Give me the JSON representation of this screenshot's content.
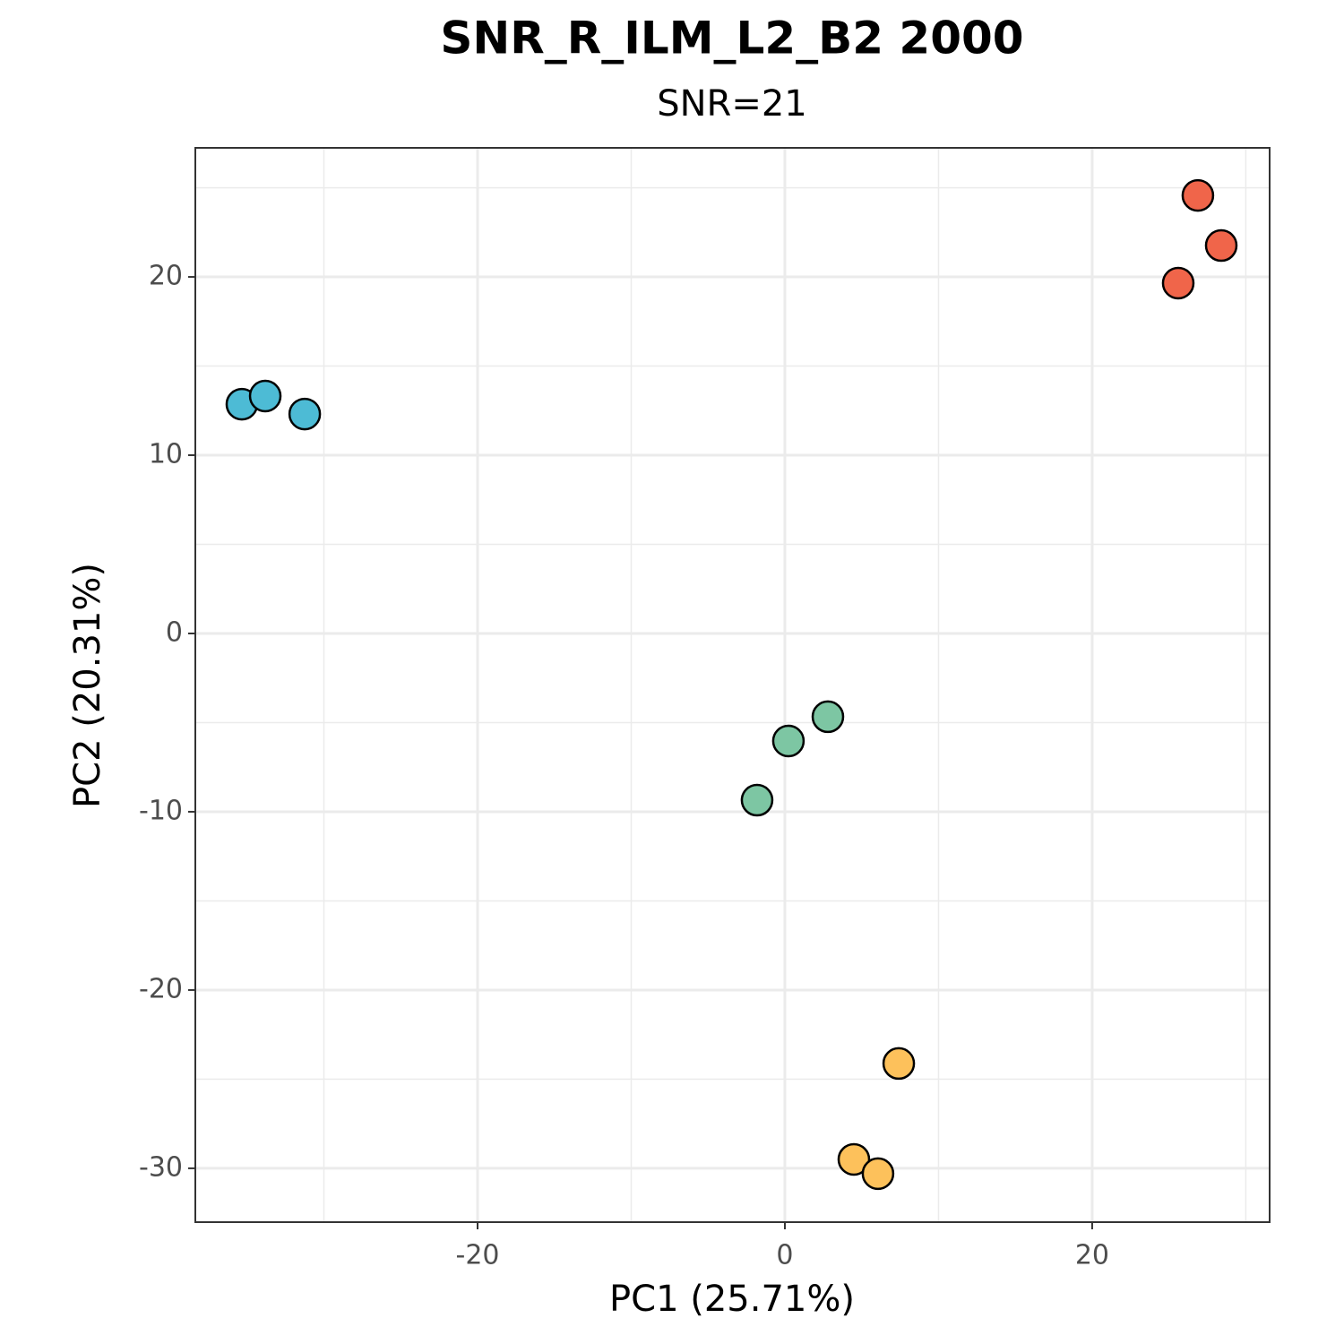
{
  "chart_data": {
    "type": "scatter",
    "title": "SNR_R_ILM_L2_B2 2000",
    "subtitle": "SNR=21",
    "x_label": "PC1 (25.71%)",
    "y_label": "PC2 (20.31%)",
    "xlim": [
      -38.37,
      31.55
    ],
    "ylim": [
      -33.02,
      27.24
    ],
    "xticks": [
      -20,
      0,
      20
    ],
    "yticks": [
      -30,
      -20,
      -10,
      0,
      10,
      20
    ],
    "grid": true,
    "series": [
      {
        "color": "#4dbbd5",
        "x": [
          -35.34,
          -33.82,
          -31.25
        ],
        "values": [
          12.86,
          13.32,
          12.31
        ]
      },
      {
        "color": "#f0654a",
        "x": [
          26.88,
          28.4,
          25.6
        ],
        "values": [
          24.57,
          21.76,
          19.65
        ]
      },
      {
        "color": "#7dc6a3",
        "x": [
          2.8,
          0.23,
          -1.81
        ],
        "values": [
          -4.67,
          -6.03,
          -9.35
        ]
      },
      {
        "color": "#fdc15b",
        "x": [
          7.41,
          4.49,
          6.06
        ],
        "values": [
          -24.12,
          -29.5,
          -30.3
        ]
      }
    ]
  }
}
